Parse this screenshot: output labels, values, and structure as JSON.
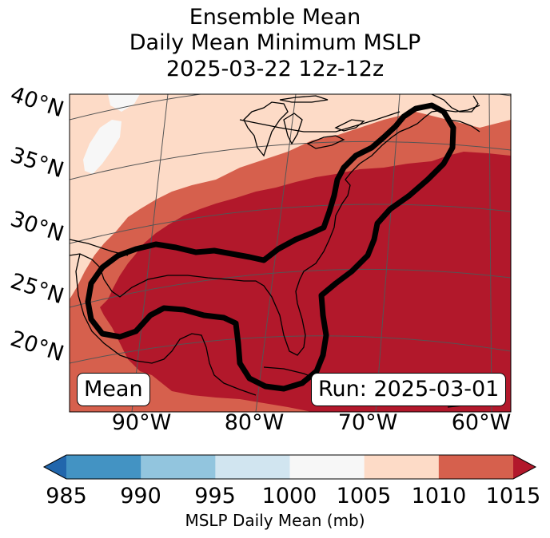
{
  "title": {
    "line1": "Ensemble Mean",
    "line2": "Daily Mean Minimum MSLP",
    "line3": "2025-03-22 12z-12z"
  },
  "map": {
    "lat_labels": [
      "40°N",
      "35°N",
      "30°N",
      "25°N",
      "20°N"
    ],
    "lon_labels": [
      "90°W",
      "80°W",
      "70°W",
      "60°W"
    ],
    "left_box": "Mean",
    "right_box": "Run: 2025-03-01"
  },
  "colorbar": {
    "ticks": [
      "985",
      "990",
      "995",
      "1000",
      "1005",
      "1010",
      "1015"
    ],
    "label": "MSLP Daily Mean (mb)",
    "colors": {
      "below": "#2166ac",
      "985-990": "#4393c3",
      "990-995": "#92c5de",
      "995-1000": "#d1e5f0",
      "1000-1005": "#f7f7f7",
      "1005-1010": "#fddbc7",
      "1010-1015": "#d6604d",
      "above": "#b2182b"
    }
  }
}
